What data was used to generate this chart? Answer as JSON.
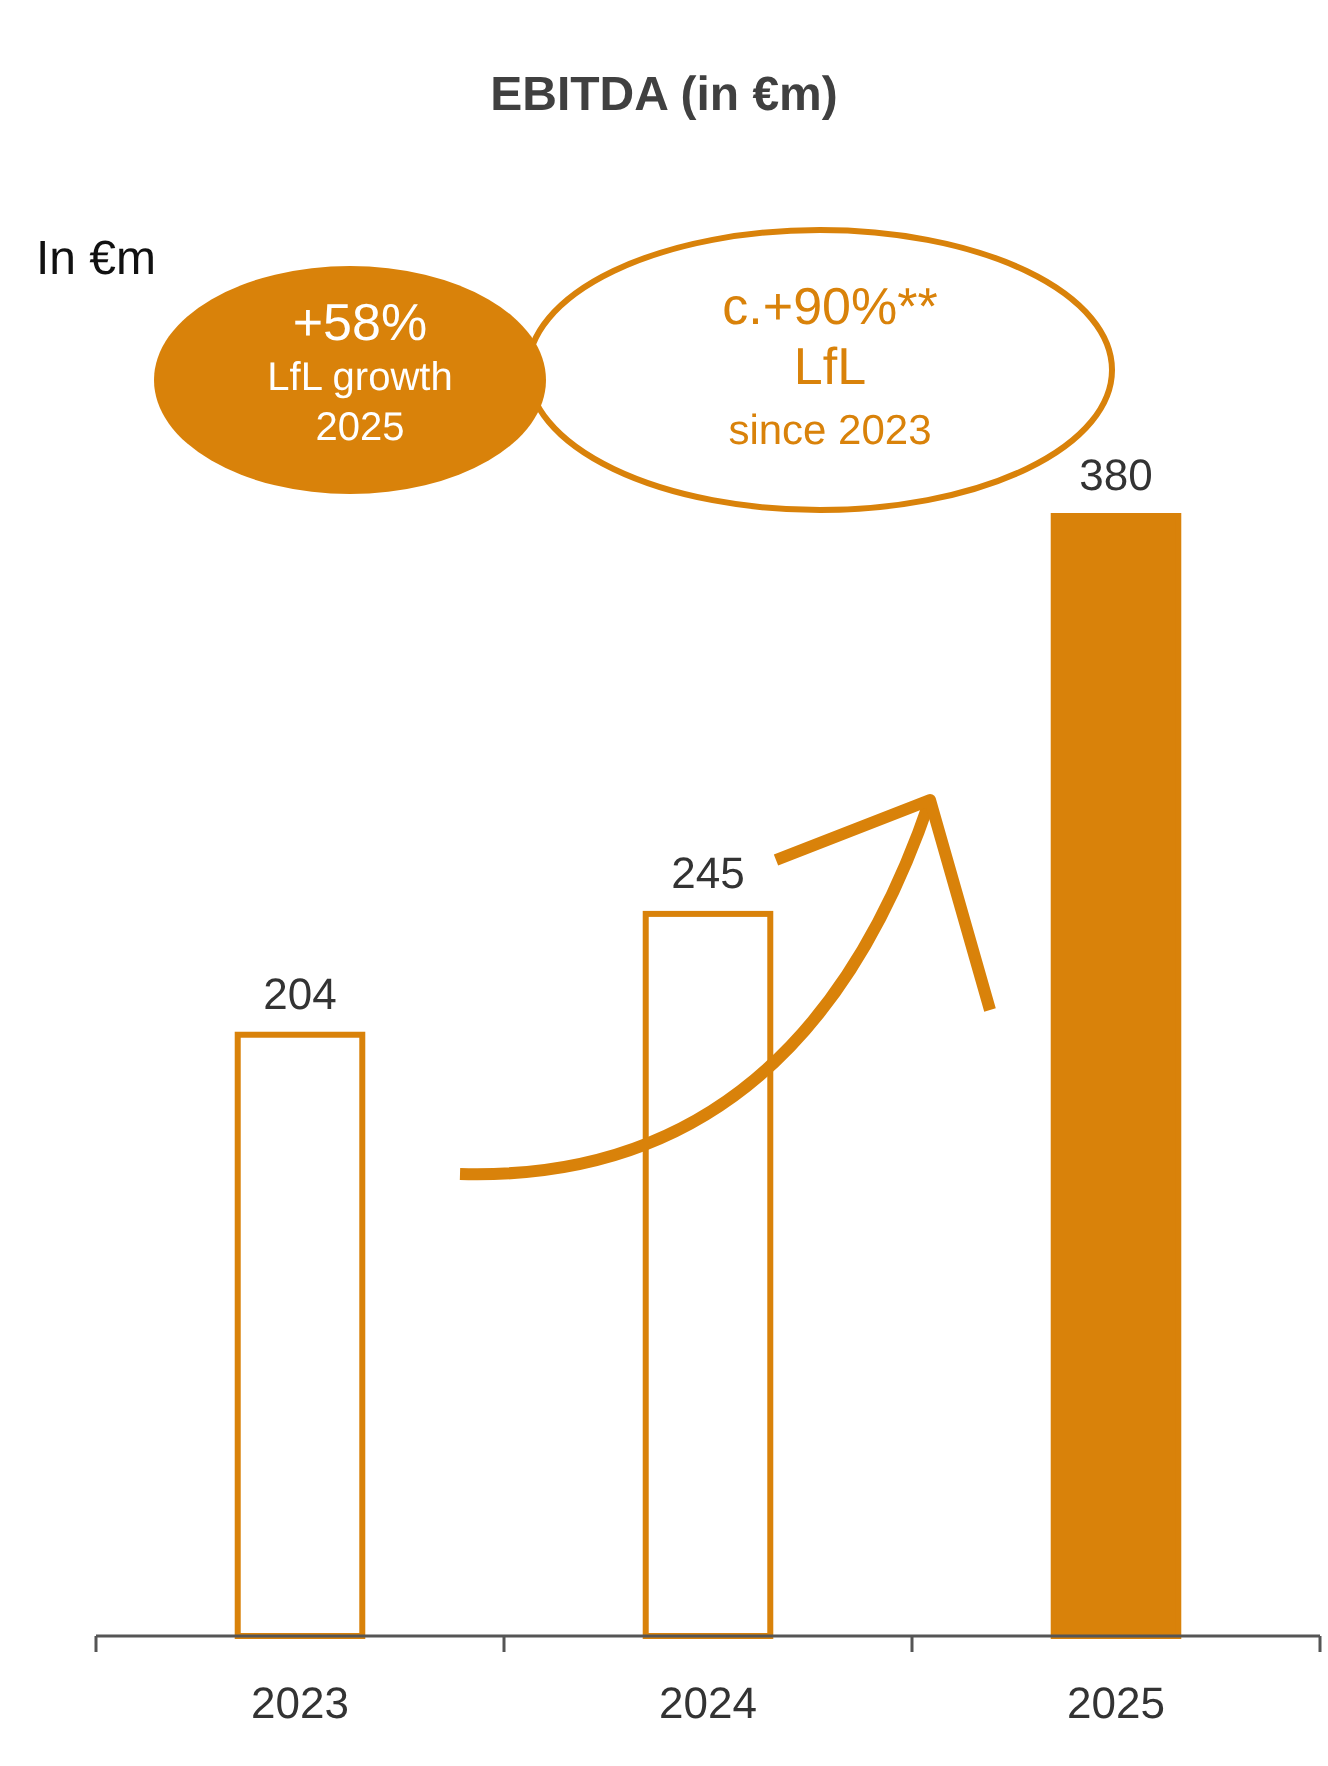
{
  "chart_data": {
    "type": "bar",
    "title": "EBITDA (in €m)",
    "categories": [
      "2023",
      "2024",
      "2025"
    ],
    "series": [
      {
        "color": "#d9820a",
        "colors": [
          "#ffffff",
          "#ffffff",
          "#d9820a"
        ],
        "values": [
          204,
          245,
          380
        ]
      }
    ],
    "data_labels": true,
    "annotations": [
      "In €m",
      "+58%\nLfL growth\n2025",
      "c.+90%**\nLfL\nsince 2023"
    ]
  }
}
